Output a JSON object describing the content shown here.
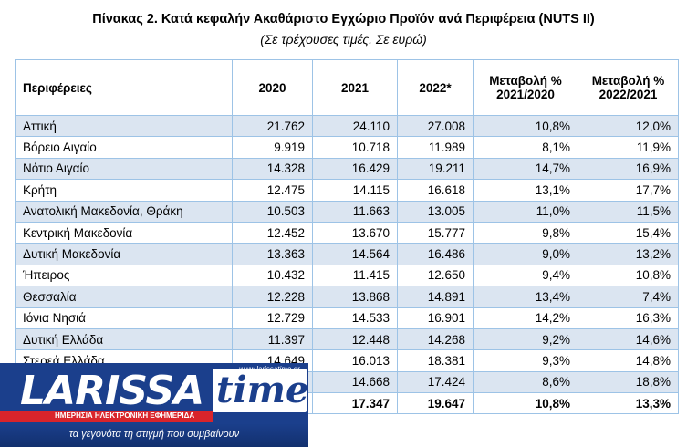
{
  "title": "Πίνακας 2. Κατά κεφαλήν Ακαθάριστο Εγχώριο Προϊόν ανά Περιφέρεια (NUTS II)",
  "subtitle": "(Σε τρέχουσες τιμές. Σε ευρώ)",
  "table": {
    "headers": [
      "Περιφέρειες",
      "2020",
      "2021",
      "2022*",
      "Μεταβολή % 2021/2020",
      "Μεταβολή % 2022/2021"
    ],
    "rows": [
      [
        "Αττική",
        "21.762",
        "24.110",
        "27.008",
        "10,8%",
        "12,0%"
      ],
      [
        "Βόρειο Αιγαίο",
        "9.919",
        "10.718",
        "11.989",
        "8,1%",
        "11,9%"
      ],
      [
        "Νότιο Αιγαίο",
        "14.328",
        "16.429",
        "19.211",
        "14,7%",
        "16,9%"
      ],
      [
        "Κρήτη",
        "12.475",
        "14.115",
        "16.618",
        "13,1%",
        "17,7%"
      ],
      [
        "Ανατολική Μακεδονία, Θράκη",
        "10.503",
        "11.663",
        "13.005",
        "11,0%",
        "11,5%"
      ],
      [
        "Κεντρική Μακεδονία",
        "12.452",
        "13.670",
        "15.777",
        "9,8%",
        "15,4%"
      ],
      [
        "Δυτική Μακεδονία",
        "13.363",
        "14.564",
        "16.486",
        "9,0%",
        "13,2%"
      ],
      [
        "Ήπειρος",
        "10.432",
        "11.415",
        "12.650",
        "9,4%",
        "10,8%"
      ],
      [
        "Θεσσαλία",
        "12.228",
        "13.868",
        "14.891",
        "13,4%",
        "7,4%"
      ],
      [
        "Ιόνια Νησιά",
        "12.729",
        "14.533",
        "16.901",
        "14,2%",
        "16,3%"
      ],
      [
        "Δυτική Ελλάδα",
        "11.397",
        "12.448",
        "14.268",
        "9,2%",
        "14,6%"
      ],
      [
        "Στερεά Ελλάδα",
        "14.649",
        "16.013",
        "18.381",
        "9,3%",
        "14,8%"
      ],
      [
        "",
        "",
        "14.668",
        "17.424",
        "8,6%",
        "18,8%"
      ],
      [
        "",
        "",
        "17.347",
        "19.647",
        "10,8%",
        "13,3%"
      ]
    ]
  },
  "logo": {
    "name_part1": "LARISSA",
    "name_part2": "time",
    "website": "www.larissatime.gr",
    "strip_text": "ΗΜΕΡΗΣΙΑ ΗΛΕΚΤΡΟΝΙΚΗ ΕΦΗΜΕΡΙΔΑ",
    "slogan": "τα γεγονότα τη στιγμή που συμβαίνουν"
  },
  "colors": {
    "band": "#dbe5f1",
    "border": "#9dc3e6",
    "logo_blue": "#1b3f8c",
    "logo_red": "#d9242b"
  }
}
